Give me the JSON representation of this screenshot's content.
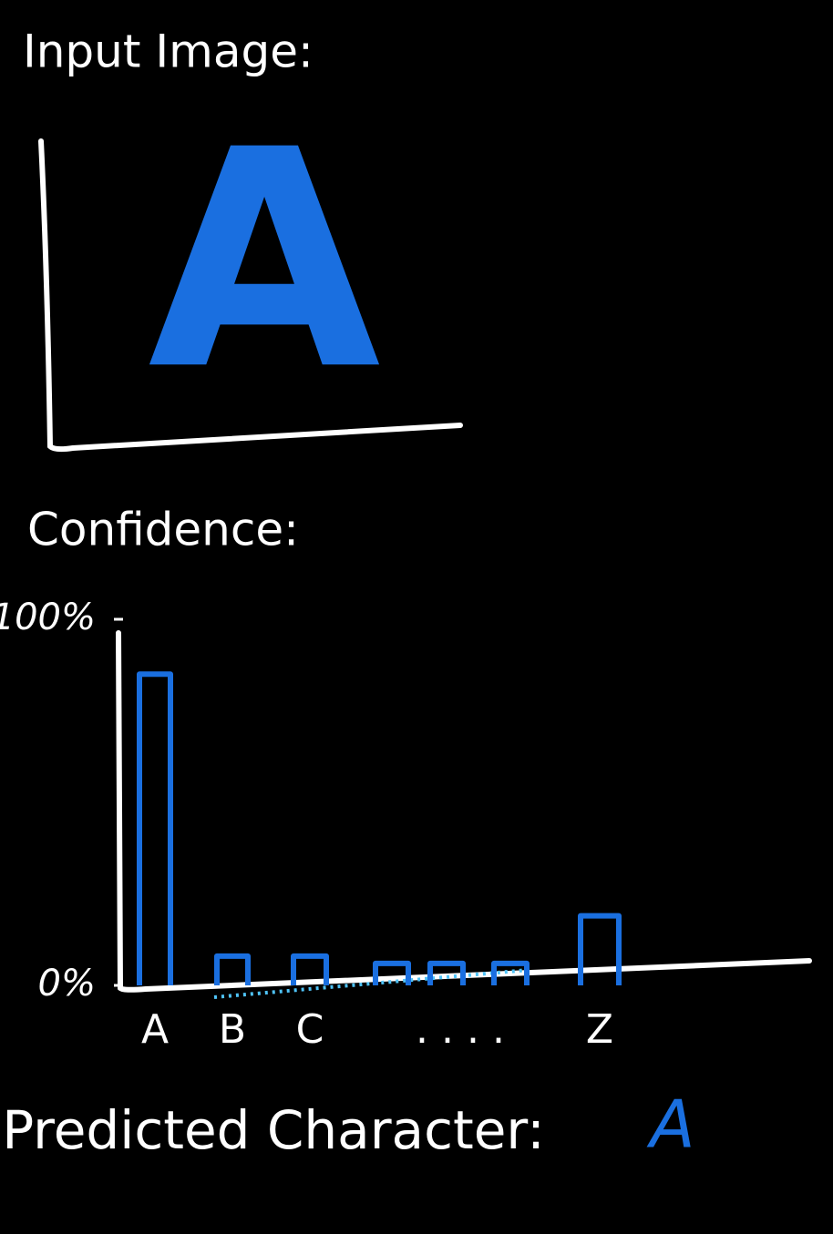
{
  "header": {
    "title": "Input Image:"
  },
  "input_image": {
    "letter": "A"
  },
  "confidence": {
    "title": "Confidence:"
  },
  "chart_data": {
    "type": "bar",
    "categories": [
      "A",
      "B",
      "C",
      null,
      null,
      null,
      "Z"
    ],
    "values": [
      85,
      8,
      8,
      6,
      6,
      6,
      19
    ],
    "color": "#1a6fe0",
    "ylim": [
      0,
      100
    ],
    "yticks": [
      {
        "value": 0,
        "label": "0%"
      },
      {
        "value": 100,
        "label": "100%"
      }
    ],
    "annotations": [
      ". . . ."
    ]
  },
  "prediction": {
    "label": "Predicted Character:",
    "value": "A"
  }
}
